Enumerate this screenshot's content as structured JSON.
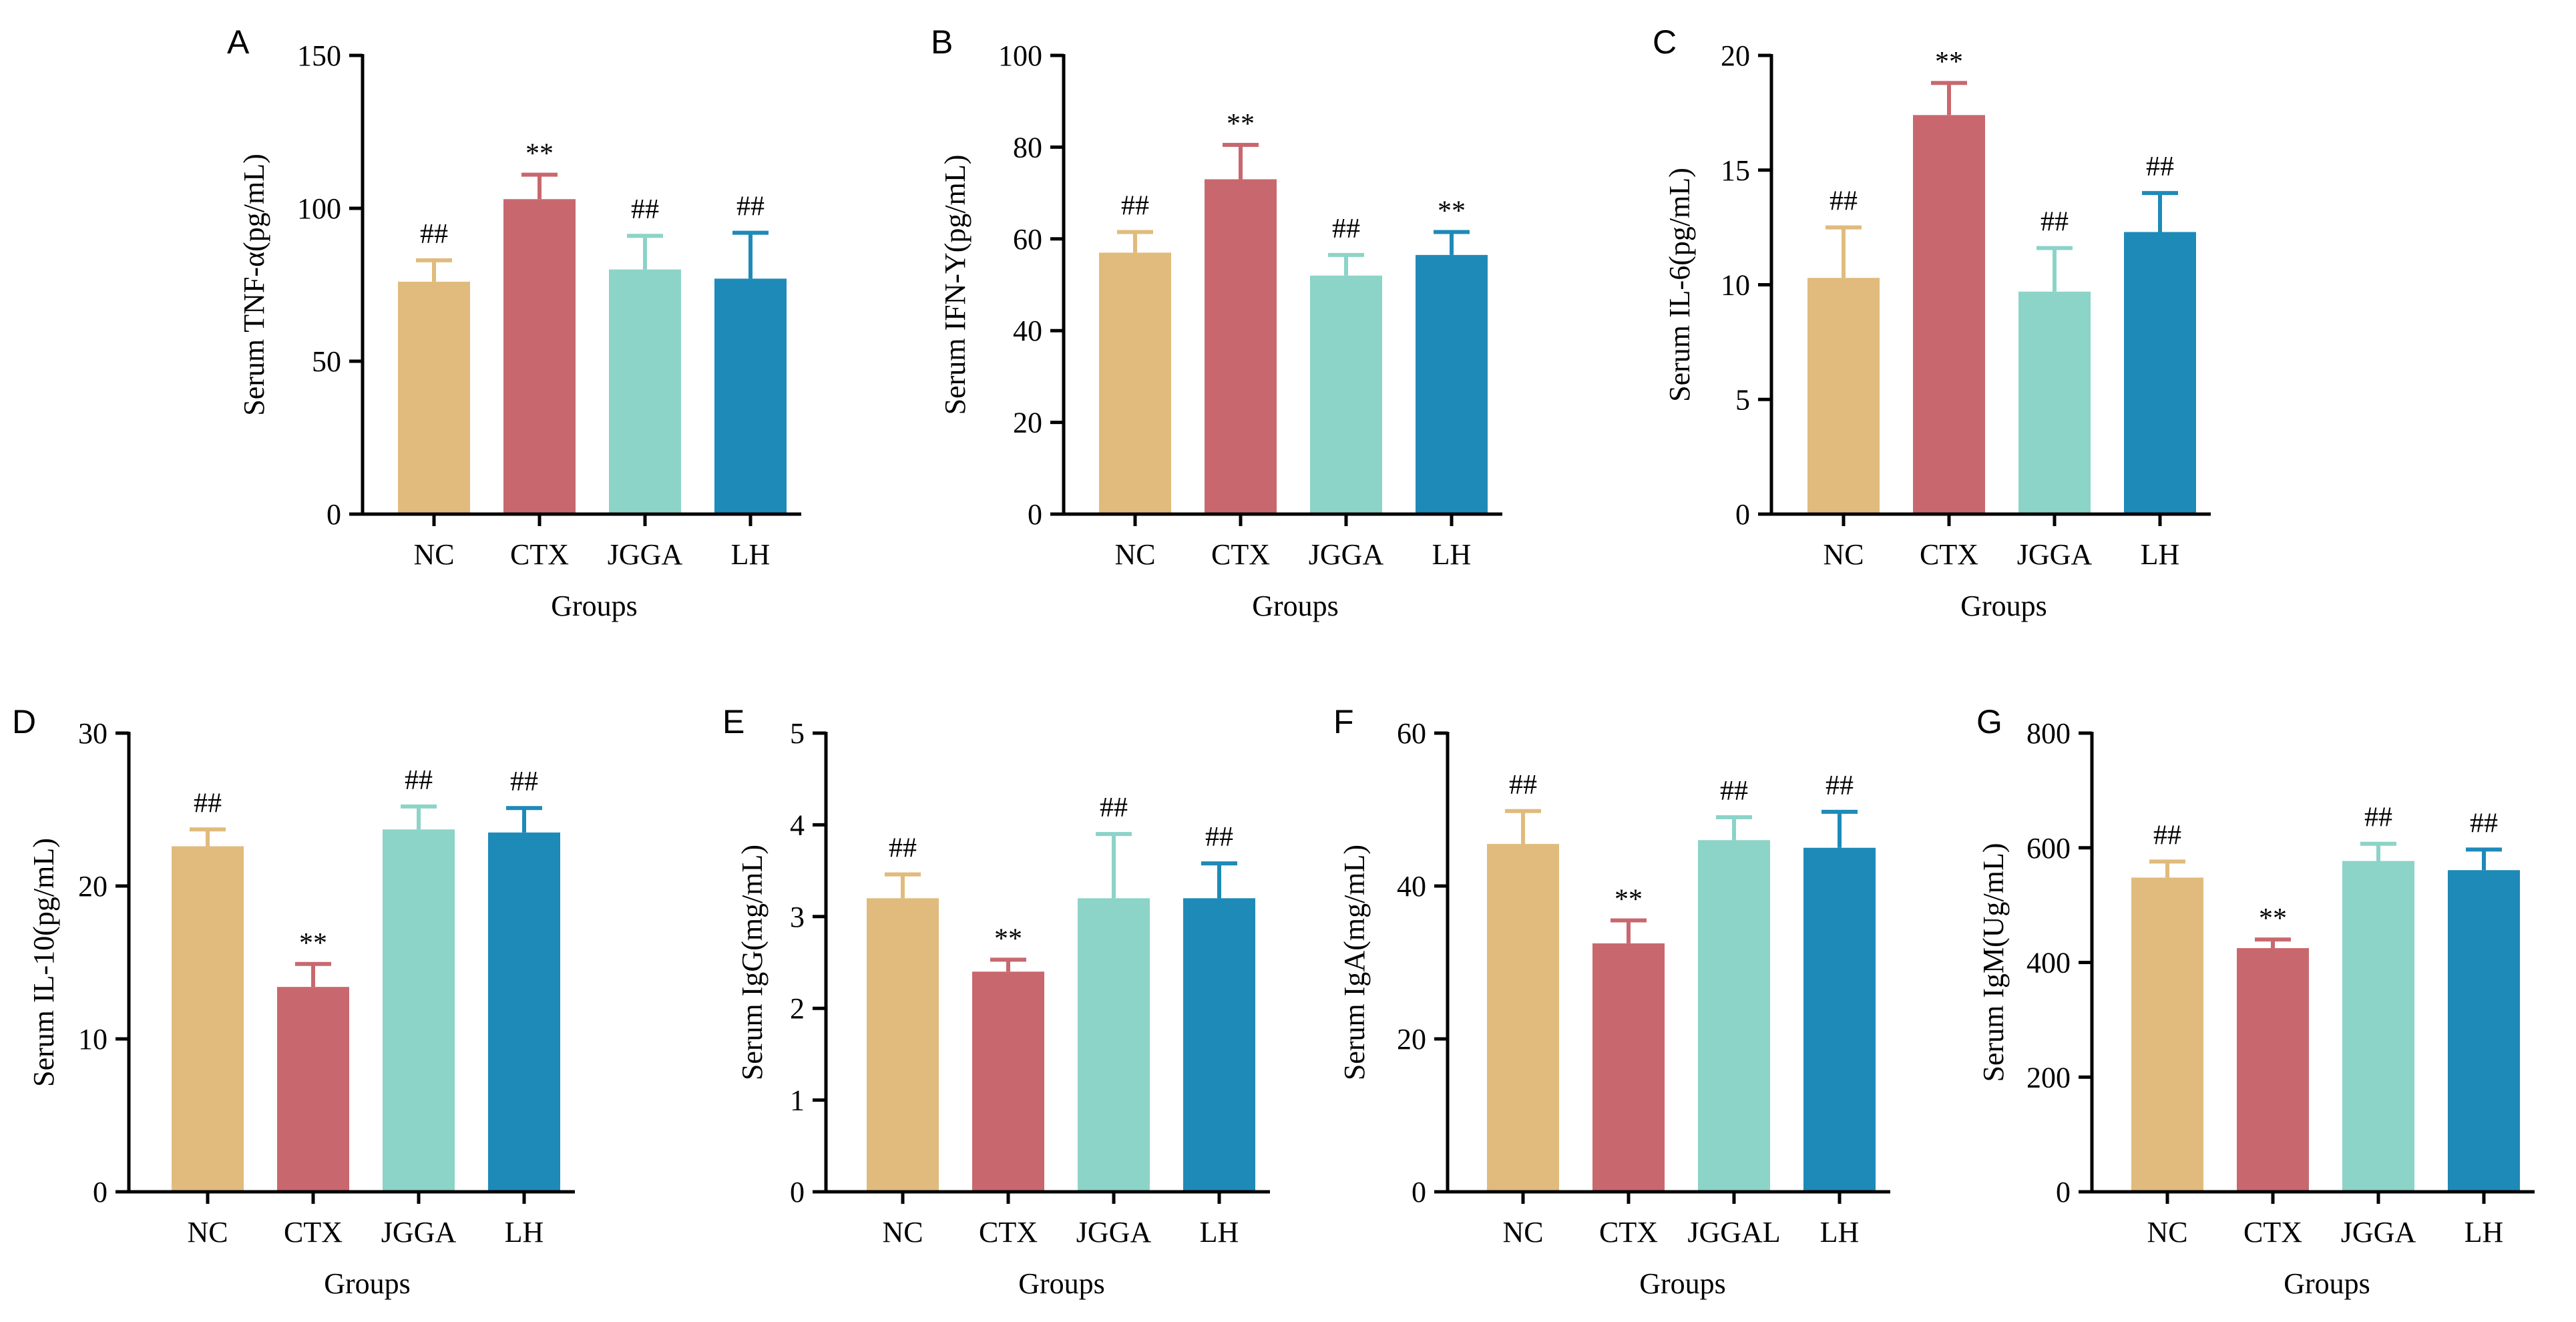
{
  "colors": {
    "NC": "#E0BB7D",
    "CTX": "#C8686E",
    "JGGA": "#8CD3C8",
    "LH": "#1E8AB8",
    "axis": "#000000"
  },
  "chart_data": [
    {
      "type": "bar",
      "panel": "A",
      "title": "",
      "ylabel": "Serum TNF-α(pg/mL)",
      "xlabel": "Groups",
      "categories": [
        "NC",
        "CTX",
        "JGGA",
        "LH"
      ],
      "values": [
        76,
        103,
        80,
        77
      ],
      "errors": [
        7,
        8,
        11,
        15
      ],
      "significance": [
        "##",
        "**",
        "##",
        "##"
      ],
      "ylim": [
        0,
        150
      ],
      "yticks": [
        0,
        50,
        100,
        150
      ]
    },
    {
      "type": "bar",
      "panel": "B",
      "title": "",
      "ylabel": "Serum IFN-Y(pg/mL)",
      "xlabel": "Groups",
      "categories": [
        "NC",
        "CTX",
        "JGGA",
        "LH"
      ],
      "values": [
        57,
        73,
        52,
        56.5
      ],
      "errors": [
        4.5,
        7.5,
        4.5,
        5
      ],
      "significance": [
        "##",
        "**",
        "##",
        "**"
      ],
      "ylim": [
        0,
        100
      ],
      "yticks": [
        0,
        20,
        40,
        60,
        80,
        100
      ]
    },
    {
      "type": "bar",
      "panel": "C",
      "title": "",
      "ylabel": "Serum IL-6(pg/mL)",
      "xlabel": "Groups",
      "categories": [
        "NC",
        "CTX",
        "JGGA",
        "LH"
      ],
      "values": [
        10.3,
        17.4,
        9.7,
        12.3
      ],
      "errors": [
        2.2,
        1.4,
        1.9,
        1.7
      ],
      "significance": [
        "##",
        "**",
        "##",
        "##"
      ],
      "ylim": [
        0,
        20
      ],
      "yticks": [
        0,
        5,
        10,
        15,
        20
      ]
    },
    {
      "type": "bar",
      "panel": "D",
      "title": "",
      "ylabel": "Serum IL-10(pg/mL)",
      "xlabel": "Groups",
      "categories": [
        "NC",
        "CTX",
        "JGGA",
        "LH"
      ],
      "values": [
        22.6,
        13.4,
        23.7,
        23.5
      ],
      "errors": [
        1.1,
        1.5,
        1.5,
        1.6
      ],
      "significance": [
        "##",
        "**",
        "##",
        "##"
      ],
      "ylim": [
        0,
        30
      ],
      "yticks": [
        0,
        10,
        20,
        30
      ]
    },
    {
      "type": "bar",
      "panel": "E",
      "title": "",
      "ylabel": "Serum IgG(mg/mL)",
      "xlabel": "Groups",
      "categories": [
        "NC",
        "CTX",
        "JGGA",
        "LH"
      ],
      "values": [
        3.2,
        2.4,
        3.2,
        3.2
      ],
      "errors": [
        0.26,
        0.13,
        0.7,
        0.38
      ],
      "significance": [
        "##",
        "**",
        "##",
        "##"
      ],
      "ylim": [
        0,
        5
      ],
      "yticks": [
        0,
        1,
        2,
        3,
        4,
        5
      ]
    },
    {
      "type": "bar",
      "panel": "F",
      "title": "",
      "ylabel": "Serum IgA(mg/mL)",
      "xlabel": "Groups",
      "categories": [
        "NC",
        "CTX",
        "JGGAL",
        "LH"
      ],
      "values": [
        45.5,
        32.5,
        46,
        45
      ],
      "errors": [
        4.3,
        3,
        3,
        4.7
      ],
      "significance": [
        "##",
        "**",
        "##",
        "##"
      ],
      "ylim": [
        0,
        60
      ],
      "yticks": [
        0,
        20,
        40,
        60
      ]
    },
    {
      "type": "bar",
      "panel": "G",
      "title": "",
      "ylabel": "Serum IgM(Ug/mL)",
      "xlabel": "Groups",
      "categories": [
        "NC",
        "CTX",
        "JGGA",
        "LH"
      ],
      "values": [
        548,
        425,
        577,
        561
      ],
      "errors": [
        28,
        15,
        30,
        36
      ],
      "significance": [
        "##",
        "**",
        "##",
        "##"
      ],
      "ylim": [
        0,
        800
      ],
      "yticks": [
        0,
        200,
        400,
        600,
        800
      ]
    }
  ]
}
